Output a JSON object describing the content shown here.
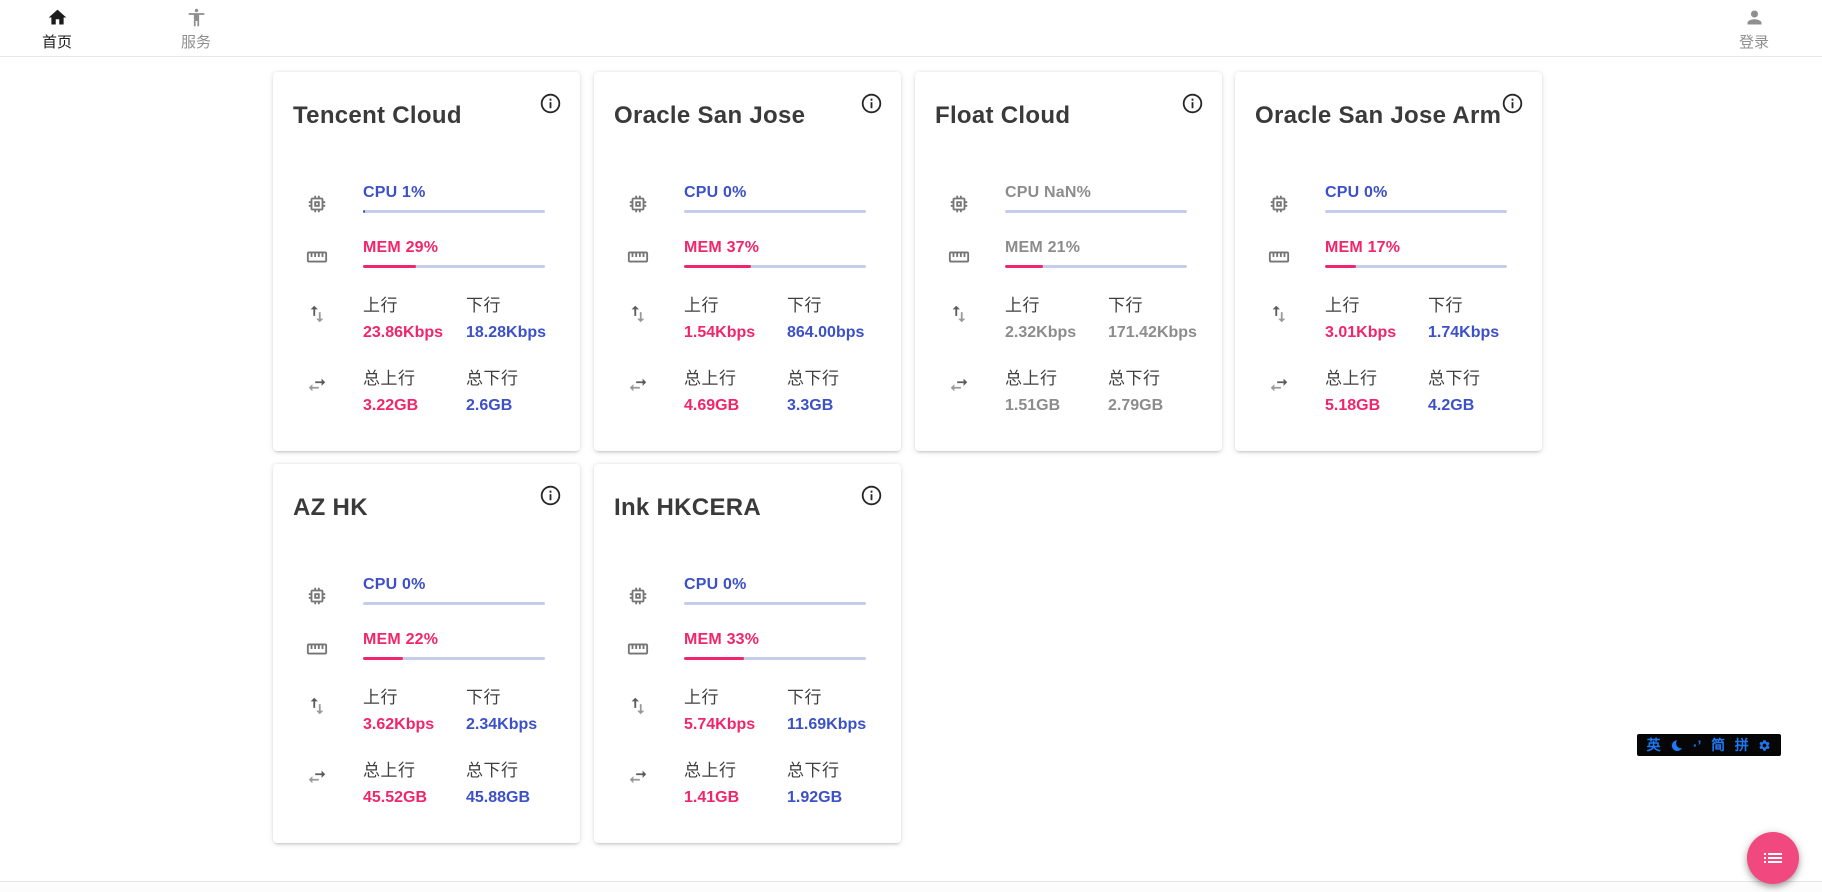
{
  "nav": {
    "home": "首页",
    "services": "服务",
    "login": "登录"
  },
  "labels": {
    "up": "上行",
    "down": "下行",
    "total_up": "总上行",
    "total_down": "总下行"
  },
  "colors": {
    "accent_blue": "#3c50c8",
    "accent_pink": "#f1256b",
    "bar_track": "#c7cbec",
    "fab_pink": "#f1487f",
    "ime_blue": "#1d79f3",
    "offline_gray": "#8c8c8c"
  },
  "servers": [
    {
      "name": "Tencent Cloud",
      "status": "online",
      "cpu_label": "CPU 1%",
      "cpu_pct": 1,
      "mem_label": "MEM 29%",
      "mem_pct": 29,
      "up": "23.86Kbps",
      "down": "18.28Kbps",
      "total_up": "3.22GB",
      "total_down": "2.6GB"
    },
    {
      "name": "Oracle San Jose",
      "status": "online",
      "cpu_label": "CPU 0%",
      "cpu_pct": 0,
      "mem_label": "MEM 37%",
      "mem_pct": 37,
      "up": "1.54Kbps",
      "down": "864.00bps",
      "total_up": "4.69GB",
      "total_down": "3.3GB"
    },
    {
      "name": "Float Cloud",
      "status": "offline",
      "cpu_label": "CPU NaN%",
      "cpu_pct": 0,
      "mem_label": "MEM 21%",
      "mem_pct": 21,
      "up": "2.32Kbps",
      "down": "171.42Kbps",
      "total_up": "1.51GB",
      "total_down": "2.79GB"
    },
    {
      "name": "Oracle San Jose Arm",
      "status": "online",
      "cpu_label": "CPU 0%",
      "cpu_pct": 0,
      "mem_label": "MEM 17%",
      "mem_pct": 17,
      "up": "3.01Kbps",
      "down": "1.74Kbps",
      "total_up": "5.18GB",
      "total_down": "4.2GB"
    },
    {
      "name": "AZ HK",
      "status": "online",
      "cpu_label": "CPU 0%",
      "cpu_pct": 0,
      "mem_label": "MEM 22%",
      "mem_pct": 22,
      "up": "3.62Kbps",
      "down": "2.34Kbps",
      "total_up": "45.52GB",
      "total_down": "45.88GB"
    },
    {
      "name": "Ink HKCERA",
      "status": "online",
      "cpu_label": "CPU 0%",
      "cpu_pct": 0,
      "mem_label": "MEM 33%",
      "mem_pct": 33,
      "up": "5.74Kbps",
      "down": "11.69Kbps",
      "total_up": "1.41GB",
      "total_down": "1.92GB"
    }
  ],
  "ime": {
    "english": "英",
    "punct": "·’",
    "simplified": "简",
    "pinyin": "拼"
  }
}
